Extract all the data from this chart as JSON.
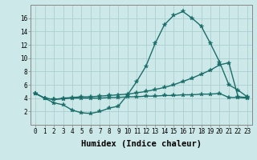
{
  "xlabel": "Humidex (Indice chaleur)",
  "background_color": "#cde8e8",
  "grid_color": "#aacfcf",
  "line_color": "#1a6e6a",
  "xlim": [
    -0.5,
    23.5
  ],
  "ylim": [
    0,
    18
  ],
  "xticks": [
    0,
    1,
    2,
    3,
    4,
    5,
    6,
    7,
    8,
    9,
    10,
    11,
    12,
    13,
    14,
    15,
    16,
    17,
    18,
    19,
    20,
    21,
    22,
    23
  ],
  "yticks": [
    2,
    4,
    6,
    8,
    10,
    12,
    14,
    16
  ],
  "x": [
    0,
    1,
    2,
    3,
    4,
    5,
    6,
    7,
    8,
    9,
    10,
    11,
    12,
    13,
    14,
    15,
    16,
    17,
    18,
    19,
    20,
    21,
    22,
    23
  ],
  "line1": [
    4.7,
    4.0,
    3.3,
    3.0,
    2.2,
    1.8,
    1.7,
    2.0,
    2.5,
    2.8,
    4.5,
    6.5,
    8.8,
    12.2,
    15.0,
    16.4,
    17.0,
    16.0,
    14.8,
    12.2,
    9.4,
    6.0,
    5.2,
    4.2
  ],
  "line2": [
    4.7,
    4.0,
    3.8,
    4.0,
    4.1,
    4.2,
    4.2,
    4.3,
    4.4,
    4.5,
    4.6,
    4.8,
    5.0,
    5.3,
    5.6,
    6.0,
    6.5,
    7.0,
    7.6,
    8.2,
    9.0,
    9.3,
    4.2,
    4.1
  ],
  "line3": [
    4.7,
    4.0,
    3.8,
    3.9,
    4.0,
    4.0,
    4.0,
    4.0,
    4.1,
    4.1,
    4.2,
    4.2,
    4.3,
    4.3,
    4.4,
    4.4,
    4.5,
    4.5,
    4.6,
    4.6,
    4.7,
    4.1,
    4.1,
    4.0
  ],
  "markersize": 3,
  "linewidth": 1.0,
  "tick_fontsize": 5.5,
  "xlabel_fontsize": 7.5
}
